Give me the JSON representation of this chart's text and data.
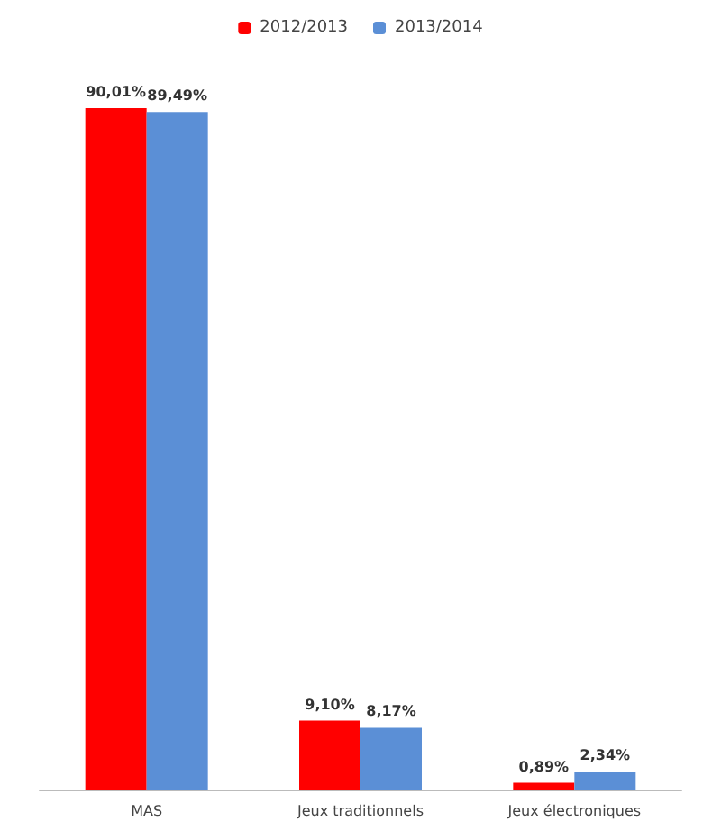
{
  "chart_data": {
    "type": "bar",
    "categories": [
      "MAS",
      "Jeux traditionnels",
      "Jeux électroniques"
    ],
    "series": [
      {
        "name": "2012/2013",
        "color": "#ff0000",
        "values": [
          90.01,
          9.1,
          0.89
        ],
        "value_labels": [
          "90,01%",
          "9,10%",
          "0,89%"
        ]
      },
      {
        "name": "2013/2014",
        "color": "#5b8fd6",
        "values": [
          89.49,
          8.17,
          2.34
        ],
        "value_labels": [
          "89,49%",
          "8,17%",
          "2,34%"
        ]
      }
    ],
    "legend": "top"
  }
}
